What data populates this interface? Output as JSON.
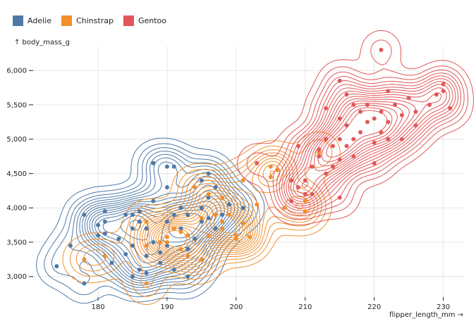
{
  "chart_data": {
    "type": "scatter",
    "subtype": "density contours with points",
    "xlabel": "flipper_length_mm →",
    "ylabel": "↑ body_mass_g",
    "xlim": [
      170.6,
      233
    ],
    "ylim": [
      2700,
      6350
    ],
    "xticks": [
      180,
      190,
      200,
      210,
      220,
      230
    ],
    "yticks": [
      3000,
      3500,
      4000,
      4500,
      5000,
      5500,
      6000
    ],
    "ytick_labels": [
      "3,000",
      "3,500",
      "4,000",
      "4,500",
      "5,000",
      "5,500",
      "6,000"
    ],
    "grid": true,
    "legend": "top-left",
    "series": [
      {
        "name": "Adelie",
        "color": "#4e79a7",
        "points": [
          [
            174,
            3150
          ],
          [
            176,
            3450
          ],
          [
            178,
            3900
          ],
          [
            178,
            2900
          ],
          [
            180,
            3600
          ],
          [
            180,
            3750
          ],
          [
            181,
            3950
          ],
          [
            181,
            3800
          ],
          [
            183,
            3550
          ],
          [
            184,
            3900
          ],
          [
            185,
            3700
          ],
          [
            185,
            3450
          ],
          [
            186,
            3100
          ],
          [
            186,
            3800
          ],
          [
            187,
            3700
          ],
          [
            187,
            3300
          ],
          [
            188,
            4650
          ],
          [
            188,
            3500
          ],
          [
            189,
            3350
          ],
          [
            190,
            3800
          ],
          [
            190,
            3450
          ],
          [
            190,
            4300
          ],
          [
            191,
            3700
          ],
          [
            191,
            3900
          ],
          [
            191,
            3100
          ],
          [
            192,
            4000
          ],
          [
            193,
            3600
          ],
          [
            193,
            3900
          ],
          [
            194,
            3550
          ],
          [
            195,
            4000
          ],
          [
            195,
            3800
          ],
          [
            195,
            4400
          ],
          [
            196,
            4150
          ],
          [
            196,
            4500
          ],
          [
            197,
            3700
          ],
          [
            197,
            4300
          ],
          [
            198,
            3900
          ],
          [
            181,
            3625
          ],
          [
            184,
            3325
          ],
          [
            185,
            3000
          ],
          [
            189,
            3200
          ],
          [
            193,
            3400
          ],
          [
            186,
            3950
          ],
          [
            187,
            3050
          ],
          [
            190,
            4600
          ],
          [
            191,
            4600
          ],
          [
            195,
            3250
          ],
          [
            193,
            3000
          ],
          [
            192,
            3700
          ],
          [
            196,
            3850
          ],
          [
            185,
            3900
          ],
          [
            182,
            3200
          ],
          [
            188,
            4100
          ],
          [
            199,
            4050
          ],
          [
            201,
            4000
          ]
        ]
      },
      {
        "name": "Chinstrap",
        "color": "#f28e2c",
        "points": [
          [
            178,
            3250
          ],
          [
            181,
            3300
          ],
          [
            187,
            3450
          ],
          [
            187,
            3800
          ],
          [
            189,
            3500
          ],
          [
            190,
            3575
          ],
          [
            191,
            3700
          ],
          [
            192,
            3650
          ],
          [
            193,
            3600
          ],
          [
            193,
            3300
          ],
          [
            195,
            3250
          ],
          [
            195,
            3850
          ],
          [
            196,
            3600
          ],
          [
            197,
            3900
          ],
          [
            198,
            3700
          ],
          [
            199,
            3900
          ],
          [
            200,
            3600
          ],
          [
            201,
            3775
          ],
          [
            201,
            4400
          ],
          [
            202,
            3575
          ],
          [
            203,
            4050
          ],
          [
            205,
            4450
          ],
          [
            205,
            4600
          ],
          [
            206,
            4550
          ],
          [
            207,
            4000
          ],
          [
            210,
            4100
          ],
          [
            212,
            4800
          ],
          [
            196,
            4200
          ],
          [
            194,
            4300
          ],
          [
            190,
            3500
          ],
          [
            187,
            2900
          ],
          [
            192,
            3400
          ],
          [
            198,
            4150
          ],
          [
            200,
            3550
          ],
          [
            210,
            3950
          ],
          [
            198,
            3800
          ]
        ]
      },
      {
        "name": "Gentoo",
        "color": "#e15759",
        "points": [
          [
            203,
            4650
          ],
          [
            208,
            4100
          ],
          [
            209,
            4300
          ],
          [
            210,
            4200
          ],
          [
            211,
            4600
          ],
          [
            210,
            4400
          ],
          [
            212,
            4850
          ],
          [
            212,
            4750
          ],
          [
            213,
            4500
          ],
          [
            214,
            4900
          ],
          [
            215,
            4700
          ],
          [
            215,
            5000
          ],
          [
            215,
            5300
          ],
          [
            216,
            5200
          ],
          [
            216,
            4900
          ],
          [
            217,
            5000
          ],
          [
            217,
            4750
          ],
          [
            218,
            5400
          ],
          [
            218,
            5100
          ],
          [
            219,
            5250
          ],
          [
            220,
            4950
          ],
          [
            220,
            5300
          ],
          [
            221,
            5400
          ],
          [
            221,
            5100
          ],
          [
            222,
            5700
          ],
          [
            222,
            5250
          ],
          [
            223,
            5500
          ],
          [
            224,
            5350
          ],
          [
            225,
            5600
          ],
          [
            226,
            5200
          ],
          [
            228,
            5500
          ],
          [
            229,
            5650
          ],
          [
            230,
            5700
          ],
          [
            230,
            5800
          ],
          [
            231,
            5450
          ],
          [
            221,
            6300
          ],
          [
            215,
            5850
          ],
          [
            217,
            5500
          ],
          [
            216,
            5650
          ],
          [
            213,
            5450
          ],
          [
            208,
            4400
          ],
          [
            211,
            4200
          ],
          [
            209,
            4900
          ],
          [
            214,
            4600
          ],
          [
            213,
            5000
          ],
          [
            219,
            5500
          ],
          [
            222,
            5000
          ],
          [
            226,
            5400
          ],
          [
            224,
            5000
          ],
          [
            220,
            4650
          ],
          [
            215,
            4150
          ]
        ]
      }
    ]
  }
}
